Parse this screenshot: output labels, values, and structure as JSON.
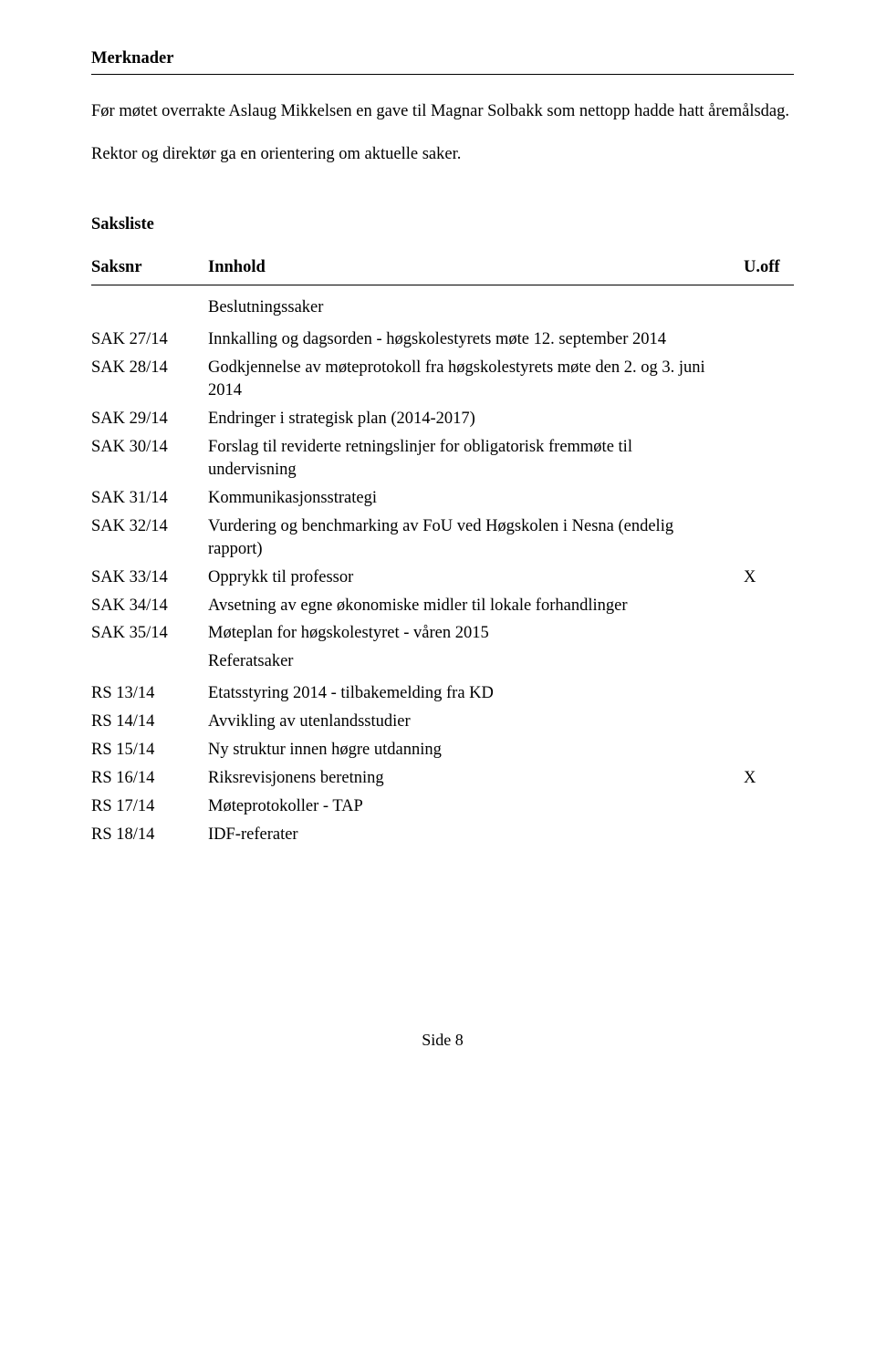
{
  "merknader": {
    "title": "Merknader",
    "p1": "Før møtet overrakte Aslaug Mikkelsen en gave til Magnar Solbakk som nettopp hadde hatt åremålsdag.",
    "p2": "Rektor og direktør ga en orientering om aktuelle saker."
  },
  "saksliste": {
    "title": "Saksliste",
    "headers": {
      "saksnr": "Saksnr",
      "innhold": "Innhold",
      "uoff": "U.off"
    },
    "subheader1": "Beslutningssaker",
    "subheader2": "Referatsaker",
    "rows": [
      {
        "saksnr": "SAK 27/14",
        "innhold": "Innkalling og dagsorden - høgskolestyrets møte 12. september 2014",
        "uoff": ""
      },
      {
        "saksnr": "SAK 28/14",
        "innhold": "Godkjennelse av møteprotokoll fra høgskolestyrets møte den 2. og 3. juni 2014",
        "uoff": ""
      },
      {
        "saksnr": "SAK 29/14",
        "innhold": "Endringer i strategisk plan (2014-2017)",
        "uoff": ""
      },
      {
        "saksnr": "SAK 30/14",
        "innhold": "Forslag til reviderte retningslinjer for obligatorisk fremmøte til undervisning",
        "uoff": ""
      },
      {
        "saksnr": "SAK 31/14",
        "innhold": "Kommunikasjonsstrategi",
        "uoff": ""
      },
      {
        "saksnr": "SAK 32/14",
        "innhold": "Vurdering og benchmarking av FoU ved Høgskolen i Nesna (endelig rapport)",
        "uoff": ""
      },
      {
        "saksnr": "SAK 33/14",
        "innhold": "Opprykk til professor",
        "uoff": "X"
      },
      {
        "saksnr": "SAK 34/14",
        "innhold": "Avsetning av egne økonomiske midler til lokale forhandlinger",
        "uoff": ""
      },
      {
        "saksnr": "SAK 35/14",
        "innhold": "Møteplan for høgskolestyret - våren 2015",
        "uoff": ""
      }
    ],
    "refRows": [
      {
        "saksnr": "RS 13/14",
        "innhold": "Etatsstyring 2014 - tilbakemelding fra KD",
        "uoff": ""
      },
      {
        "saksnr": "RS 14/14",
        "innhold": "Avvikling av utenlandsstudier",
        "uoff": ""
      },
      {
        "saksnr": "RS 15/14",
        "innhold": "Ny struktur innen høgre utdanning",
        "uoff": ""
      },
      {
        "saksnr": "RS 16/14",
        "innhold": "Riksrevisjonens beretning",
        "uoff": "X"
      },
      {
        "saksnr": "RS 17/14",
        "innhold": "Møteprotokoller - TAP",
        "uoff": ""
      },
      {
        "saksnr": "RS 18/14",
        "innhold": "IDF-referater",
        "uoff": ""
      }
    ]
  },
  "page": "Side 8"
}
